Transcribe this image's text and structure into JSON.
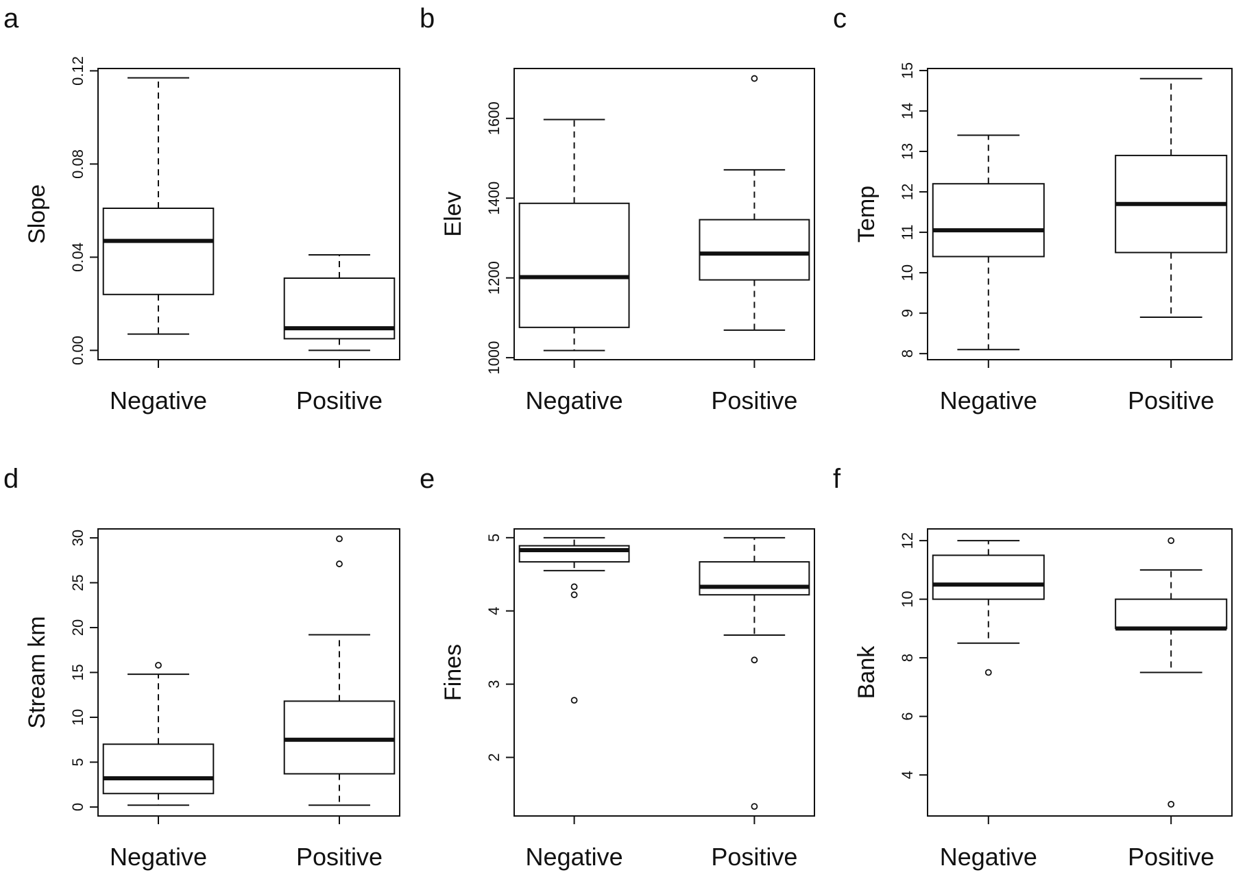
{
  "chart_data": [
    {
      "type": "box",
      "panel_letter": "a",
      "ylabel": "Slope",
      "categories": [
        "Negative",
        "Positive"
      ],
      "ylim": [
        -0.004,
        0.121
      ],
      "yticks": [
        0.0,
        0.04,
        0.08,
        0.12
      ],
      "ytick_labels": [
        "0.00",
        "0.04",
        "0.08",
        "0.12"
      ],
      "boxes": [
        {
          "whisker_low": 0.007,
          "q1": 0.024,
          "median": 0.047,
          "q3": 0.061,
          "whisker_high": 0.117,
          "outliers": []
        },
        {
          "whisker_low": 0.0,
          "q1": 0.005,
          "median": 0.0095,
          "q3": 0.031,
          "whisker_high": 0.041,
          "outliers": []
        }
      ]
    },
    {
      "type": "box",
      "panel_letter": "b",
      "ylabel": "Elev",
      "categories": [
        "Negative",
        "Positive"
      ],
      "ylim": [
        995,
        1725
      ],
      "yticks": [
        1000,
        1200,
        1400,
        1600
      ],
      "ytick_labels": [
        "1000",
        "1200",
        "1400",
        "1600"
      ],
      "boxes": [
        {
          "whisker_low": 1018,
          "q1": 1076,
          "median": 1202,
          "q3": 1387,
          "whisker_high": 1597,
          "outliers": []
        },
        {
          "whisker_low": 1069,
          "q1": 1195,
          "median": 1261,
          "q3": 1346,
          "whisker_high": 1471,
          "outliers": [
            1700
          ]
        }
      ]
    },
    {
      "type": "box",
      "panel_letter": "c",
      "ylabel": "Temp",
      "categories": [
        "Negative",
        "Positive"
      ],
      "ylim": [
        7.85,
        15.05
      ],
      "yticks": [
        8,
        9,
        10,
        11,
        12,
        13,
        14,
        15
      ],
      "ytick_labels": [
        "8",
        "9",
        "10",
        "11",
        "12",
        "13",
        "14",
        "15"
      ],
      "boxes": [
        {
          "whisker_low": 8.1,
          "q1": 10.4,
          "median": 11.05,
          "q3": 12.2,
          "whisker_high": 13.4,
          "outliers": []
        },
        {
          "whisker_low": 8.9,
          "q1": 10.5,
          "median": 11.7,
          "q3": 12.9,
          "whisker_high": 14.8,
          "outliers": []
        }
      ]
    },
    {
      "type": "box",
      "panel_letter": "d",
      "ylabel": "Stream km",
      "categories": [
        "Negative",
        "Positive"
      ],
      "ylim": [
        -1.0,
        31.0
      ],
      "yticks": [
        0,
        5,
        10,
        15,
        20,
        25,
        30
      ],
      "ytick_labels": [
        "0",
        "5",
        "10",
        "15",
        "20",
        "25",
        "30"
      ],
      "boxes": [
        {
          "whisker_low": 0.2,
          "q1": 1.5,
          "median": 3.2,
          "q3": 7.0,
          "whisker_high": 14.8,
          "outliers": [
            15.8
          ]
        },
        {
          "whisker_low": 0.2,
          "q1": 3.7,
          "median": 7.5,
          "q3": 11.8,
          "whisker_high": 19.2,
          "outliers": [
            27.1,
            29.9
          ]
        }
      ]
    },
    {
      "type": "box",
      "panel_letter": "e",
      "ylabel": "Fines",
      "categories": [
        "Negative",
        "Positive"
      ],
      "ylim": [
        1.2,
        5.12
      ],
      "yticks": [
        2,
        3,
        4,
        5
      ],
      "ytick_labels": [
        "2",
        "3",
        "4",
        "5"
      ],
      "boxes": [
        {
          "whisker_low": 4.55,
          "q1": 4.67,
          "median": 4.83,
          "q3": 4.89,
          "whisker_high": 5.0,
          "outliers": [
            4.33,
            4.22,
            2.78
          ]
        },
        {
          "whisker_low": 3.67,
          "q1": 4.22,
          "median": 4.33,
          "q3": 4.67,
          "whisker_high": 5.0,
          "outliers": [
            3.33,
            1.33
          ]
        }
      ]
    },
    {
      "type": "box",
      "panel_letter": "f",
      "ylabel": "Bank",
      "categories": [
        "Negative",
        "Positive"
      ],
      "ylim": [
        2.6,
        12.4
      ],
      "yticks": [
        4,
        6,
        8,
        10,
        12
      ],
      "ytick_labels": [
        "4",
        "6",
        "8",
        "10",
        "12"
      ],
      "boxes": [
        {
          "whisker_low": 8.5,
          "q1": 10.0,
          "median": 10.5,
          "q3": 11.5,
          "whisker_high": 12.0,
          "outliers": [
            7.5
          ]
        },
        {
          "whisker_low": 7.5,
          "q1": 9.0,
          "median": 9.0,
          "q3": 10.0,
          "whisker_high": 11.0,
          "outliers": [
            12.0,
            3.0
          ]
        }
      ]
    }
  ]
}
